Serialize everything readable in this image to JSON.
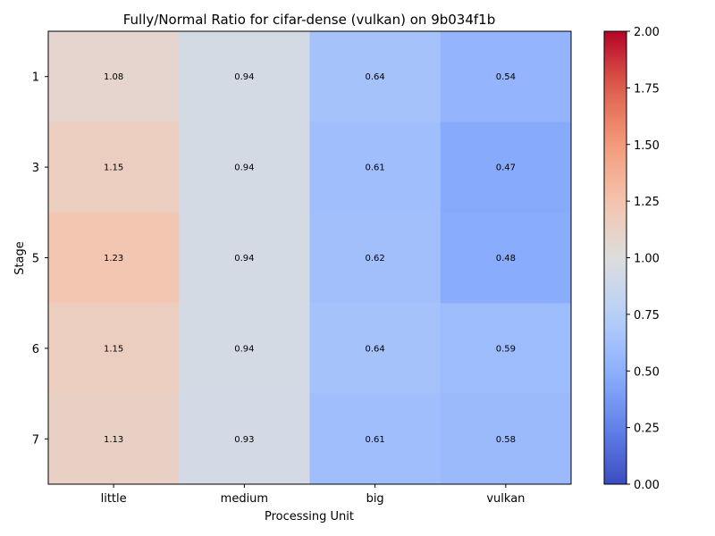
{
  "chart_data": {
    "type": "heatmap",
    "title": "Fully/Normal Ratio for cifar-dense (vulkan) on 9b034f1b",
    "xlabel": "Processing Unit",
    "ylabel": "Stage",
    "x_categories": [
      "little",
      "medium",
      "big",
      "vulkan"
    ],
    "y_categories": [
      "1",
      "3",
      "5",
      "6",
      "7"
    ],
    "values": [
      [
        1.08,
        0.94,
        0.64,
        0.54
      ],
      [
        1.15,
        0.94,
        0.61,
        0.47
      ],
      [
        1.23,
        0.94,
        0.62,
        0.48
      ],
      [
        1.15,
        0.94,
        0.64,
        0.59
      ],
      [
        1.13,
        0.93,
        0.61,
        0.58
      ]
    ],
    "value_labels": [
      [
        "1.08",
        "0.94",
        "0.64",
        "0.54"
      ],
      [
        "1.15",
        "0.94",
        "0.61",
        "0.47"
      ],
      [
        "1.23",
        "0.94",
        "0.62",
        "0.48"
      ],
      [
        "1.15",
        "0.94",
        "0.64",
        "0.59"
      ],
      [
        "1.13",
        "0.93",
        "0.61",
        "0.58"
      ]
    ],
    "colorbar": {
      "colormap": "coolwarm",
      "range": [
        0.0,
        2.0
      ],
      "ticks": [
        "0.00",
        "0.25",
        "0.50",
        "0.75",
        "1.00",
        "1.25",
        "1.50",
        "1.75",
        "2.00"
      ]
    },
    "grid": false
  }
}
